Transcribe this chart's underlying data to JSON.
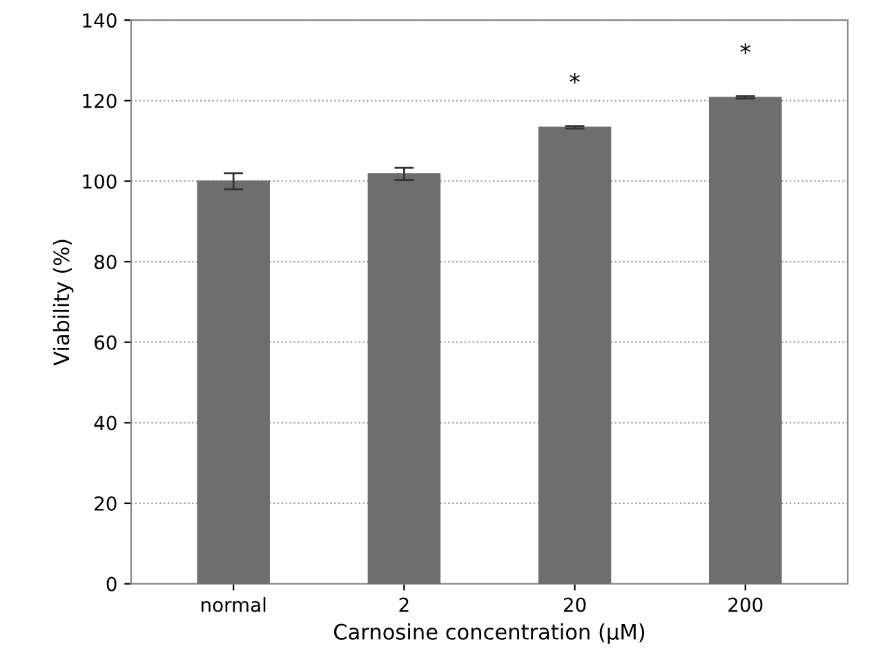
{
  "chart_data": {
    "type": "bar",
    "xlabel": "Carnosine concentration (μM)",
    "ylabel": "Viability (%)",
    "categories": [
      "normal",
      "2",
      "20",
      "200"
    ],
    "values": [
      100,
      101.8,
      113.4,
      120.8
    ],
    "errors": [
      2,
      1.5,
      0.3,
      0.3
    ],
    "color": "#6e6e6e",
    "ylim": [
      0,
      140
    ],
    "yticks": [
      0,
      20,
      40,
      60,
      80,
      100,
      120,
      140
    ],
    "grid": "y",
    "annotations": [
      "*",
      "*"
    ]
  }
}
